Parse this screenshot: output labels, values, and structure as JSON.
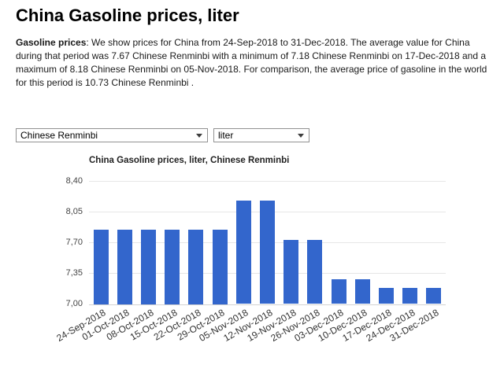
{
  "page": {
    "title": "China Gasoline prices, liter",
    "description_lead": "Gasoline prices",
    "description_rest": ": We show prices for China from 24-Sep-2018 to 31-Dec-2018. The average value for China during that period was 7.67 Chinese Renminbi with a minimum of 7.18 Chinese Renminbi on 17-Dec-2018 and a maximum of 8.18 Chinese Renminbi on 05-Nov-2018. For comparison, the average price of gasoline in the world for this period is 10.73 Chinese Renminbi ."
  },
  "controls": {
    "currency_select": {
      "value": "Chinese Renminbi"
    },
    "unit_select": {
      "value": "liter"
    }
  },
  "chart_data": {
    "type": "bar",
    "title": "China Gasoline prices, liter, Chinese Renminbi",
    "categories": [
      "24-Sep-2018",
      "01-Oct-2018",
      "08-Oct-2018",
      "15-Oct-2018",
      "22-Oct-2018",
      "29-Oct-2018",
      "05-Nov-2018",
      "12-Nov-2018",
      "19-Nov-2018",
      "26-Nov-2018",
      "03-Dec-2018",
      "10-Dec-2018",
      "17-Dec-2018",
      "24-Dec-2018",
      "31-Dec-2018"
    ],
    "values": [
      7.85,
      7.85,
      7.85,
      7.85,
      7.85,
      7.85,
      8.18,
      8.18,
      7.73,
      7.73,
      7.28,
      7.28,
      7.18,
      7.18,
      7.18
    ],
    "xlabel": "",
    "ylabel": "",
    "ylim": [
      7.0,
      8.4
    ],
    "yticks": [
      {
        "value": 7.0,
        "label": "7,00"
      },
      {
        "value": 7.35,
        "label": "7,35"
      },
      {
        "value": 7.7,
        "label": "7,70"
      },
      {
        "value": 8.05,
        "label": "8,05"
      },
      {
        "value": 8.4,
        "label": "8,40"
      }
    ],
    "grid": true,
    "legend": "none",
    "bar_color": "#3366cc"
  }
}
